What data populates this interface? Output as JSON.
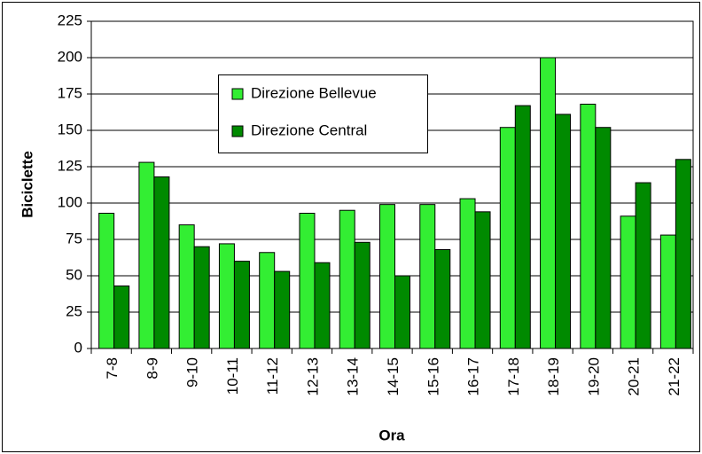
{
  "chart_data": {
    "type": "bar",
    "xlabel": "Ora",
    "ylabel": "Biciclette",
    "categories": [
      "7-8",
      "8-9",
      "9-10",
      "10-11",
      "11-12",
      "12-13",
      "13-14",
      "14-15",
      "15-16",
      "16-17",
      "17-18",
      "18-19",
      "19-20",
      "20-21",
      "21-22"
    ],
    "series": [
      {
        "name": "Direzione Bellevue",
        "color": "#33ee33",
        "values": [
          93,
          128,
          85,
          72,
          66,
          93,
          95,
          99,
          99,
          103,
          152,
          200,
          168,
          91,
          78
        ]
      },
      {
        "name": "Direzione Central",
        "color": "#008a00",
        "values": [
          43,
          118,
          70,
          60,
          53,
          59,
          73,
          50,
          68,
          94,
          167,
          161,
          152,
          114,
          130
        ]
      }
    ],
    "ylim": [
      0,
      225
    ],
    "yticks": [
      0,
      25,
      50,
      75,
      100,
      125,
      150,
      175,
      200,
      225
    ],
    "grid": true
  }
}
